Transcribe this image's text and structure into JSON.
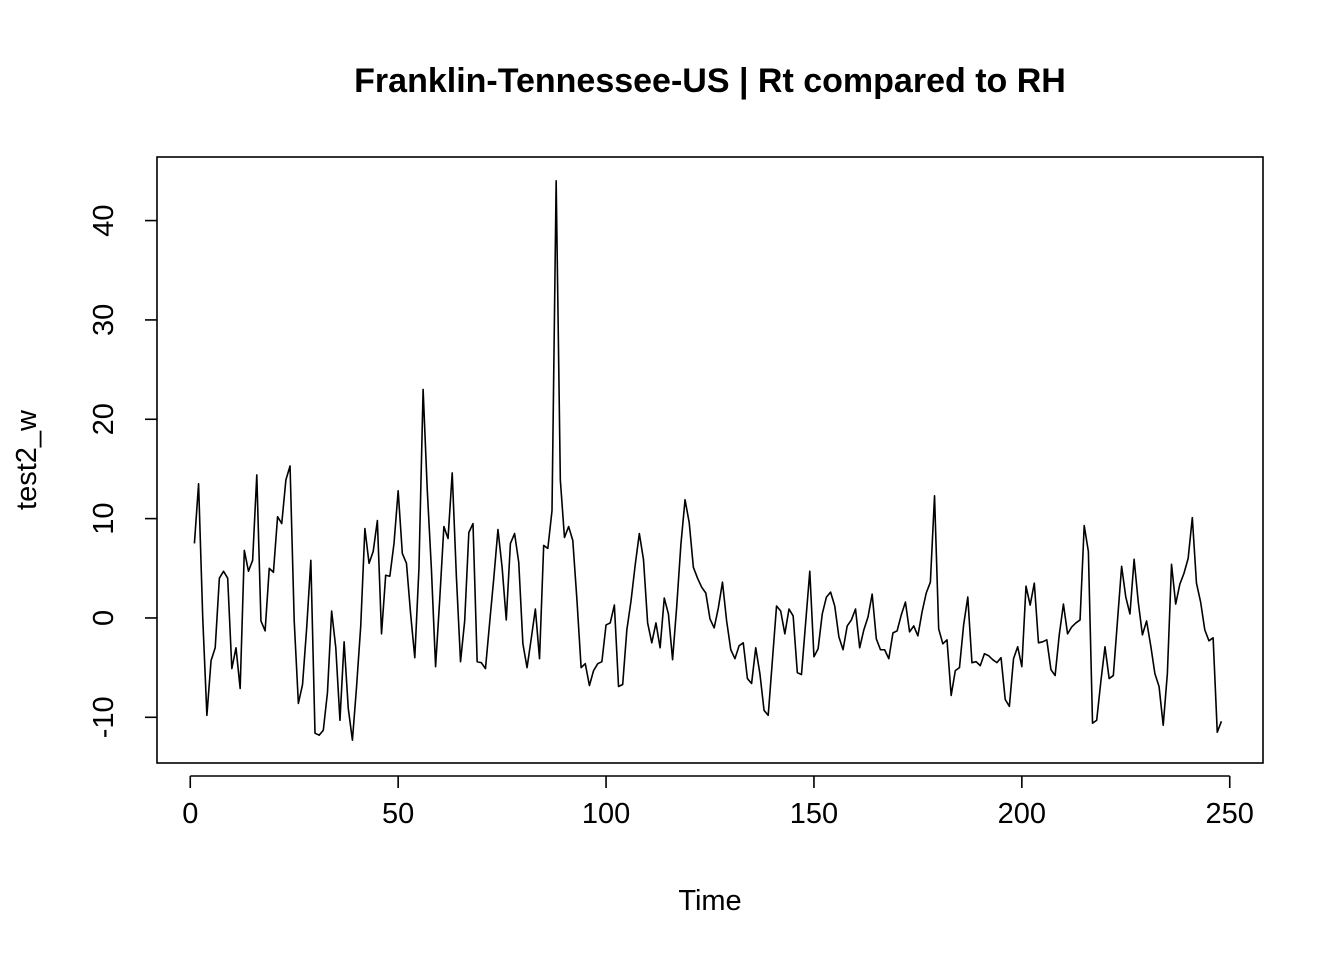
{
  "chart_data": {
    "type": "line",
    "title": "Franklin-Tennessee-US | Rt compared to RH",
    "xlabel": "Time",
    "ylabel": "test2_w",
    "xlim": [
      -8,
      258
    ],
    "ylim": [
      -14.6,
      46.4
    ],
    "x_ticks": [
      0,
      50,
      100,
      150,
      200,
      250
    ],
    "y_ticks": [
      -10,
      0,
      10,
      20,
      30,
      40
    ],
    "grid": false,
    "x_start": 1,
    "series": [
      {
        "values": [
          7.5,
          13.5,
          0,
          -9.8,
          -4.3,
          -3,
          4,
          4.7,
          4,
          -5.1,
          -3,
          -7.1,
          6.8,
          4.7,
          5.8,
          14.4,
          -0.3,
          -1.3,
          5,
          4.6,
          10.2,
          9.5,
          13.9,
          15.3,
          -0.3,
          -8.6,
          -6.7,
          -1,
          5.8,
          -11.6,
          -11.8,
          -11.3,
          -7.5,
          0.7,
          -3,
          -10.3,
          -2.4,
          -9.1,
          -12.3,
          -6.9,
          -0.8,
          9,
          5.5,
          6.7,
          9.8,
          -1.6,
          4.3,
          4.2,
          7.5,
          12.8,
          6.5,
          5.5,
          0.4,
          -4,
          5,
          23,
          12.9,
          4.9,
          -4.9,
          1.9,
          9.2,
          8,
          14.6,
          4.2,
          -4.4,
          -0.3,
          8.6,
          9.5,
          -4.4,
          -4.5,
          -5.1,
          -0.5,
          4,
          8.9,
          5.1,
          -0.2,
          7.5,
          8.5,
          5.6,
          -2.6,
          -5,
          -2.1,
          0.9,
          -4.1,
          7.3,
          7,
          10.8,
          44,
          13.9,
          8.1,
          9.2,
          7.8,
          1.8,
          -5,
          -4.6,
          -6.8,
          -5.3,
          -4.6,
          -4.4,
          -0.7,
          -0.5,
          1.3,
          -6.9,
          -6.7,
          -1.2,
          1.7,
          5.3,
          8.5,
          5.9,
          -0.5,
          -2.5,
          -0.5,
          -3,
          2,
          0.4,
          -4.2,
          1.2,
          7.4,
          11.9,
          9.6,
          5.1,
          4,
          3.1,
          2.5,
          -0.1,
          -1,
          1,
          3.6,
          -0.3,
          -3.2,
          -4.1,
          -2.8,
          -2.5,
          -6.1,
          -6.6,
          -3,
          -5.6,
          -9.3,
          -9.8,
          -4.3,
          1.2,
          0.7,
          -1.6,
          0.9,
          0.2,
          -5.5,
          -5.7,
          -0.5,
          4.7,
          -3.9,
          -3.1,
          0.4,
          2.1,
          2.6,
          1.2,
          -1.9,
          -3.2,
          -0.8,
          -0.2,
          0.9,
          -3,
          -1.2,
          0.1,
          2.4,
          -2.1,
          -3.2,
          -3.2,
          -4.1,
          -1.5,
          -1.3,
          0.3,
          1.6,
          -1.4,
          -0.8,
          -1.8,
          0.6,
          2.5,
          3.6,
          12.3,
          -1.1,
          -2.6,
          -2.2,
          -7.8,
          -5.3,
          -5,
          -0.7,
          2.1,
          -4.5,
          -4.4,
          -4.8,
          -3.6,
          -3.8,
          -4.2,
          -4.5,
          -4,
          -8.2,
          -8.9,
          -4.1,
          -2.9,
          -4.9,
          3.2,
          1.3,
          3.5,
          -2.5,
          -2.4,
          -2.2,
          -5.2,
          -5.8,
          -1.7,
          1.4,
          -1.6,
          -0.9,
          -0.5,
          -0.2,
          9.3,
          6.7,
          -10.6,
          -10.3,
          -6.4,
          -2.9,
          -6.1,
          -5.8,
          -0.3,
          5.2,
          2.1,
          0.4,
          5.9,
          1.6,
          -1.7,
          -0.3,
          -2.8,
          -5.6,
          -6.9,
          -10.8,
          -5.6,
          5.4,
          1.4,
          3.4,
          4.5,
          6,
          10.1,
          3.5,
          1.6,
          -1.2,
          -2.3,
          -2,
          -11.5,
          -10.4
        ]
      }
    ]
  }
}
